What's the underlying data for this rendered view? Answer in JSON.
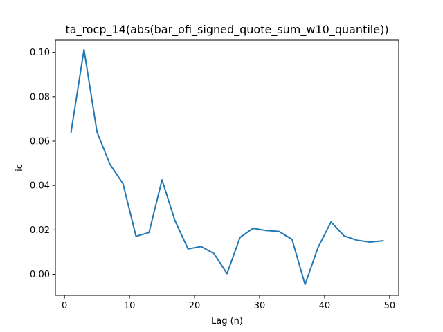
{
  "chart_data": {
    "type": "line",
    "title": "ta_rocp_14(abs(bar_ofi_signed_quote_sum_w10_quantile))",
    "xlabel": "Lag (n)",
    "ylabel": "ic",
    "xlim": [
      -1.4,
      51.4
    ],
    "ylim": [
      -0.0095,
      0.1055
    ],
    "xticks": [
      0,
      10,
      20,
      30,
      40,
      50
    ],
    "xtick_labels": [
      "0",
      "10",
      "20",
      "30",
      "40",
      "50"
    ],
    "yticks": [
      0.0,
      0.02,
      0.04,
      0.06,
      0.08,
      0.1
    ],
    "ytick_labels": [
      "0.00",
      "0.02",
      "0.04",
      "0.06",
      "0.08",
      "0.10"
    ],
    "grid": false,
    "legend": false,
    "series": [
      {
        "color": "#1f77b4",
        "x": [
          1,
          3,
          5,
          7,
          9,
          11,
          13,
          15,
          17,
          19,
          21,
          23,
          25,
          27,
          29,
          31,
          33,
          35,
          37,
          39,
          41,
          43,
          45,
          47,
          49
        ],
        "y": [
          0.0639,
          0.1012,
          0.0641,
          0.0495,
          0.0408,
          0.0171,
          0.0188,
          0.0425,
          0.0241,
          0.0114,
          0.0125,
          0.0093,
          0.0003,
          0.0166,
          0.0207,
          0.0197,
          0.0193,
          0.0157,
          -0.0046,
          0.0121,
          0.0236,
          0.0173,
          0.0153,
          0.0145,
          0.0151
        ]
      }
    ]
  }
}
